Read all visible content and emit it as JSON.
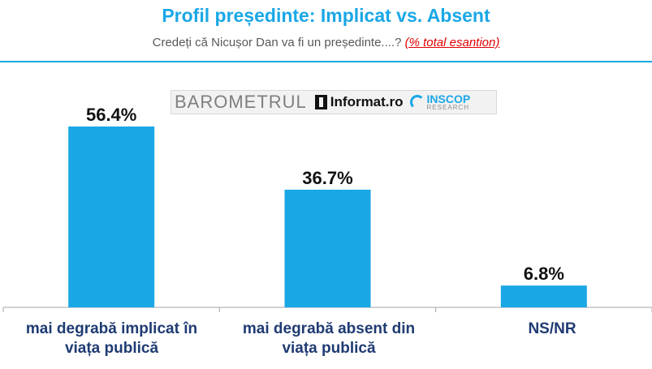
{
  "header": {
    "title": "Profil președinte: Implicat vs. Absent",
    "question": "Credeți că Nicușor Dan va fi un președinte....?",
    "note": "(% total esantion)"
  },
  "logo": {
    "barometrul": "BAROMETRUL",
    "informat": "Informat.ro",
    "inscop": "INSCOP",
    "research": "RESEARCH"
  },
  "colors": {
    "title": "#1aa7e6",
    "bar": "#1aa7e6",
    "category_label": "#1f3b73",
    "note": "#e00000"
  },
  "chart_data": {
    "type": "bar",
    "categories": [
      "mai degrabă implicat în viața publică",
      "mai degrabă absent din viața publică",
      "NS/NR"
    ],
    "values": [
      56.4,
      36.7,
      6.8
    ],
    "value_labels": [
      "56.4%",
      "36.7%",
      "6.8%"
    ],
    "ylim": [
      0,
      60
    ],
    "grid": false,
    "xlabel": "",
    "ylabel": ""
  }
}
